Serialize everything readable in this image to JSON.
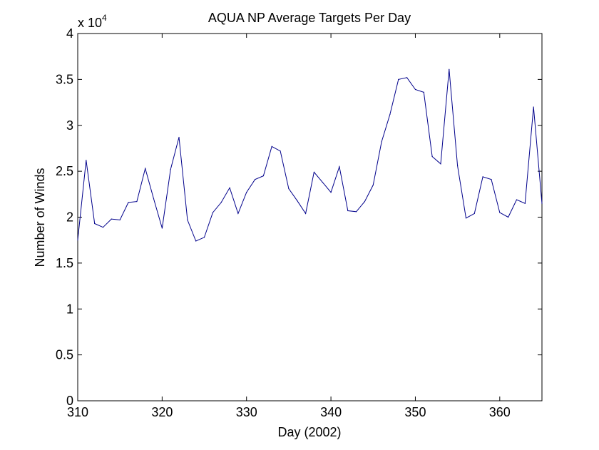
{
  "chart_data": {
    "type": "line",
    "title": "AQUA NP Average Targets Per Day",
    "xlabel": "Day (2002)",
    "ylabel": "Number of Winds",
    "exponent_base": "x 10",
    "exponent_power": "4",
    "xlim": [
      310,
      365
    ],
    "ylim": [
      0,
      4
    ],
    "grid": false,
    "line_color": "#00008B",
    "xticks": [
      310,
      320,
      330,
      340,
      350,
      360
    ],
    "xtick_labels": [
      "310",
      "320",
      "330",
      "340",
      "350",
      "360"
    ],
    "yticks": [
      0,
      0.5,
      1,
      1.5,
      2,
      2.5,
      3,
      3.5,
      4
    ],
    "ytick_labels": [
      "0",
      "0.5",
      "1",
      "1.5",
      "2",
      "2.5",
      "3",
      "3.5",
      "4"
    ],
    "series": [
      {
        "x": [
          310,
          311,
          312,
          313,
          314,
          315,
          316,
          317,
          318,
          319,
          320,
          321,
          322,
          323,
          324,
          325,
          326,
          327,
          328,
          329,
          330,
          331,
          332,
          333,
          334,
          335,
          336,
          337,
          338,
          339,
          340,
          341,
          342,
          343,
          344,
          345,
          346,
          347,
          348,
          349,
          350,
          351,
          352,
          353,
          354,
          355,
          356,
          357,
          358,
          359,
          360,
          361,
          362,
          363,
          364,
          365
        ],
        "values": [
          1.75,
          2.62,
          1.93,
          1.89,
          1.98,
          1.97,
          2.16,
          2.17,
          2.53,
          2.2,
          1.88,
          2.52,
          2.87,
          1.97,
          1.74,
          1.78,
          2.05,
          2.16,
          2.32,
          2.04,
          2.27,
          2.41,
          2.45,
          2.77,
          2.72,
          2.31,
          2.18,
          2.04,
          2.49,
          2.38,
          2.27,
          2.55,
          2.07,
          2.06,
          2.17,
          2.35,
          2.82,
          3.12,
          3.5,
          3.52,
          3.39,
          3.36,
          2.66,
          2.58,
          3.61,
          2.56,
          1.99,
          2.04,
          2.44,
          2.41,
          2.05,
          2.0,
          2.19,
          2.15,
          3.2,
          2.15
        ]
      }
    ]
  }
}
